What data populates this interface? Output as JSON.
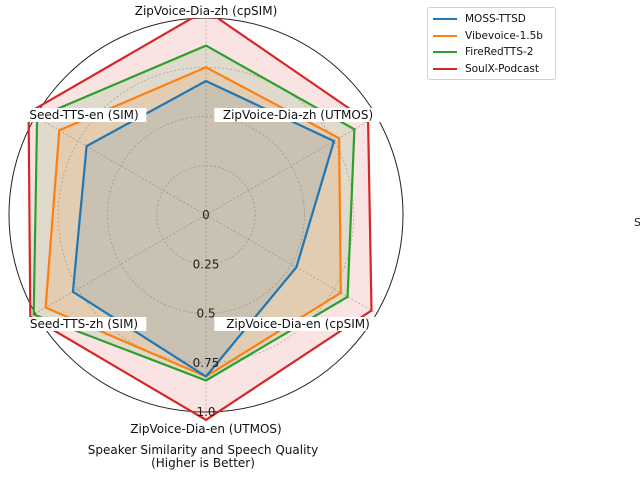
{
  "chart_data": {
    "type": "radar",
    "axes": [
      "ZipVoice-Dia-zh (cpSIM)",
      "ZipVoice-Dia-zh (UTMOS)",
      "ZipVoice-Dia-en (cpSIM)",
      "ZipVoice-Dia-en (UTMOS)",
      "Seed-TTS-zh (SIM)",
      "Seed-TTS-en (SIM)"
    ],
    "radial_ticks": [
      "0",
      "0.25",
      "0.5",
      "0.75",
      "1.0"
    ],
    "rlim": [
      0,
      1.0
    ],
    "grid": true,
    "legend_position": "upper-right",
    "series": [
      {
        "name": "MOSS-TTSD",
        "color": "#1f77b4",
        "values": [
          0.68,
          0.75,
          0.53,
          0.82,
          0.78,
          0.7
        ]
      },
      {
        "name": "Vibevoice-1.5b",
        "color": "#ff7f0e",
        "values": [
          0.75,
          0.78,
          0.79,
          0.82,
          0.94,
          0.86
        ]
      },
      {
        "name": "FireRedTTS-2",
        "color": "#2ca02c",
        "values": [
          0.86,
          0.87,
          0.83,
          0.84,
          1.01,
          0.99
        ]
      },
      {
        "name": "SoulX-Podcast",
        "color": "#d62728",
        "values": [
          1.04,
          0.95,
          0.97,
          1.04,
          1.03,
          1.04
        ]
      }
    ]
  },
  "caption": {
    "line1": "Speaker Similarity and Speech Quality",
    "line2": "(Higher is Better)"
  },
  "clipped_text": "S"
}
